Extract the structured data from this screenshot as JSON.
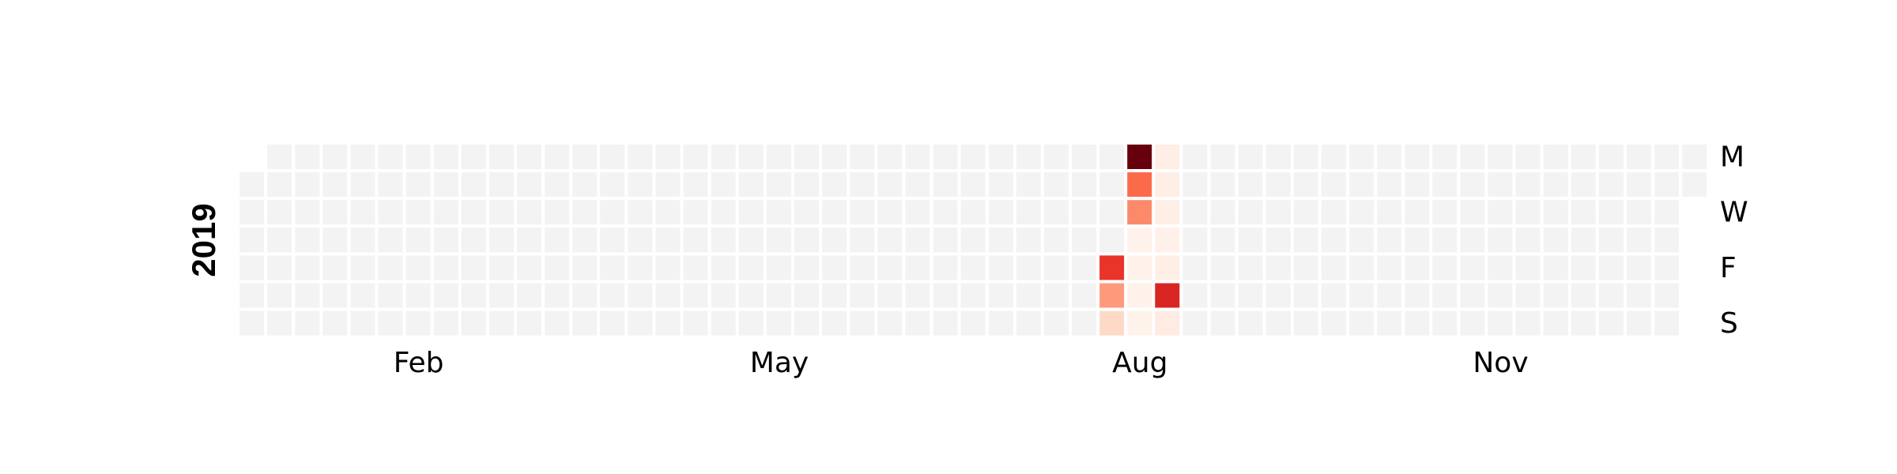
{
  "chart_data": {
    "type": "heatmap",
    "title": "",
    "year": "2019",
    "start_date": "2019-01-01",
    "end_date": "2019-12-31",
    "colormap": "Reds",
    "empty_color": "#f3f3f3",
    "grid": false,
    "day_labels": [
      {
        "row": 0,
        "label": "M"
      },
      {
        "row": 2,
        "label": "W"
      },
      {
        "row": 4,
        "label": "F"
      },
      {
        "row": 6,
        "label": "S"
      }
    ],
    "month_labels": [
      {
        "label": "Feb",
        "week": 6.5
      },
      {
        "label": "May",
        "week": 19.5
      },
      {
        "label": "Aug",
        "week": 32.5
      },
      {
        "label": "Nov",
        "week": 45.5
      }
    ],
    "vmax": 10,
    "values": [
      {
        "date": "2019-08-09",
        "value": 6.5
      },
      {
        "date": "2019-08-10",
        "value": 3.5
      },
      {
        "date": "2019-08-11",
        "value": 1.5
      },
      {
        "date": "2019-08-12",
        "value": 10
      },
      {
        "date": "2019-08-13",
        "value": 5
      },
      {
        "date": "2019-08-14",
        "value": 4
      },
      {
        "date": "2019-08-15",
        "value": 0.2
      },
      {
        "date": "2019-08-16",
        "value": 0.2
      },
      {
        "date": "2019-08-17",
        "value": 0.2
      },
      {
        "date": "2019-08-18",
        "value": 0.2
      },
      {
        "date": "2019-08-19",
        "value": 0.4
      },
      {
        "date": "2019-08-20",
        "value": 0.4
      },
      {
        "date": "2019-08-21",
        "value": 0.4
      },
      {
        "date": "2019-08-22",
        "value": 0.3
      },
      {
        "date": "2019-08-23",
        "value": 0.4
      },
      {
        "date": "2019-08-24",
        "value": 7
      },
      {
        "date": "2019-08-25",
        "value": 0.6
      }
    ]
  }
}
